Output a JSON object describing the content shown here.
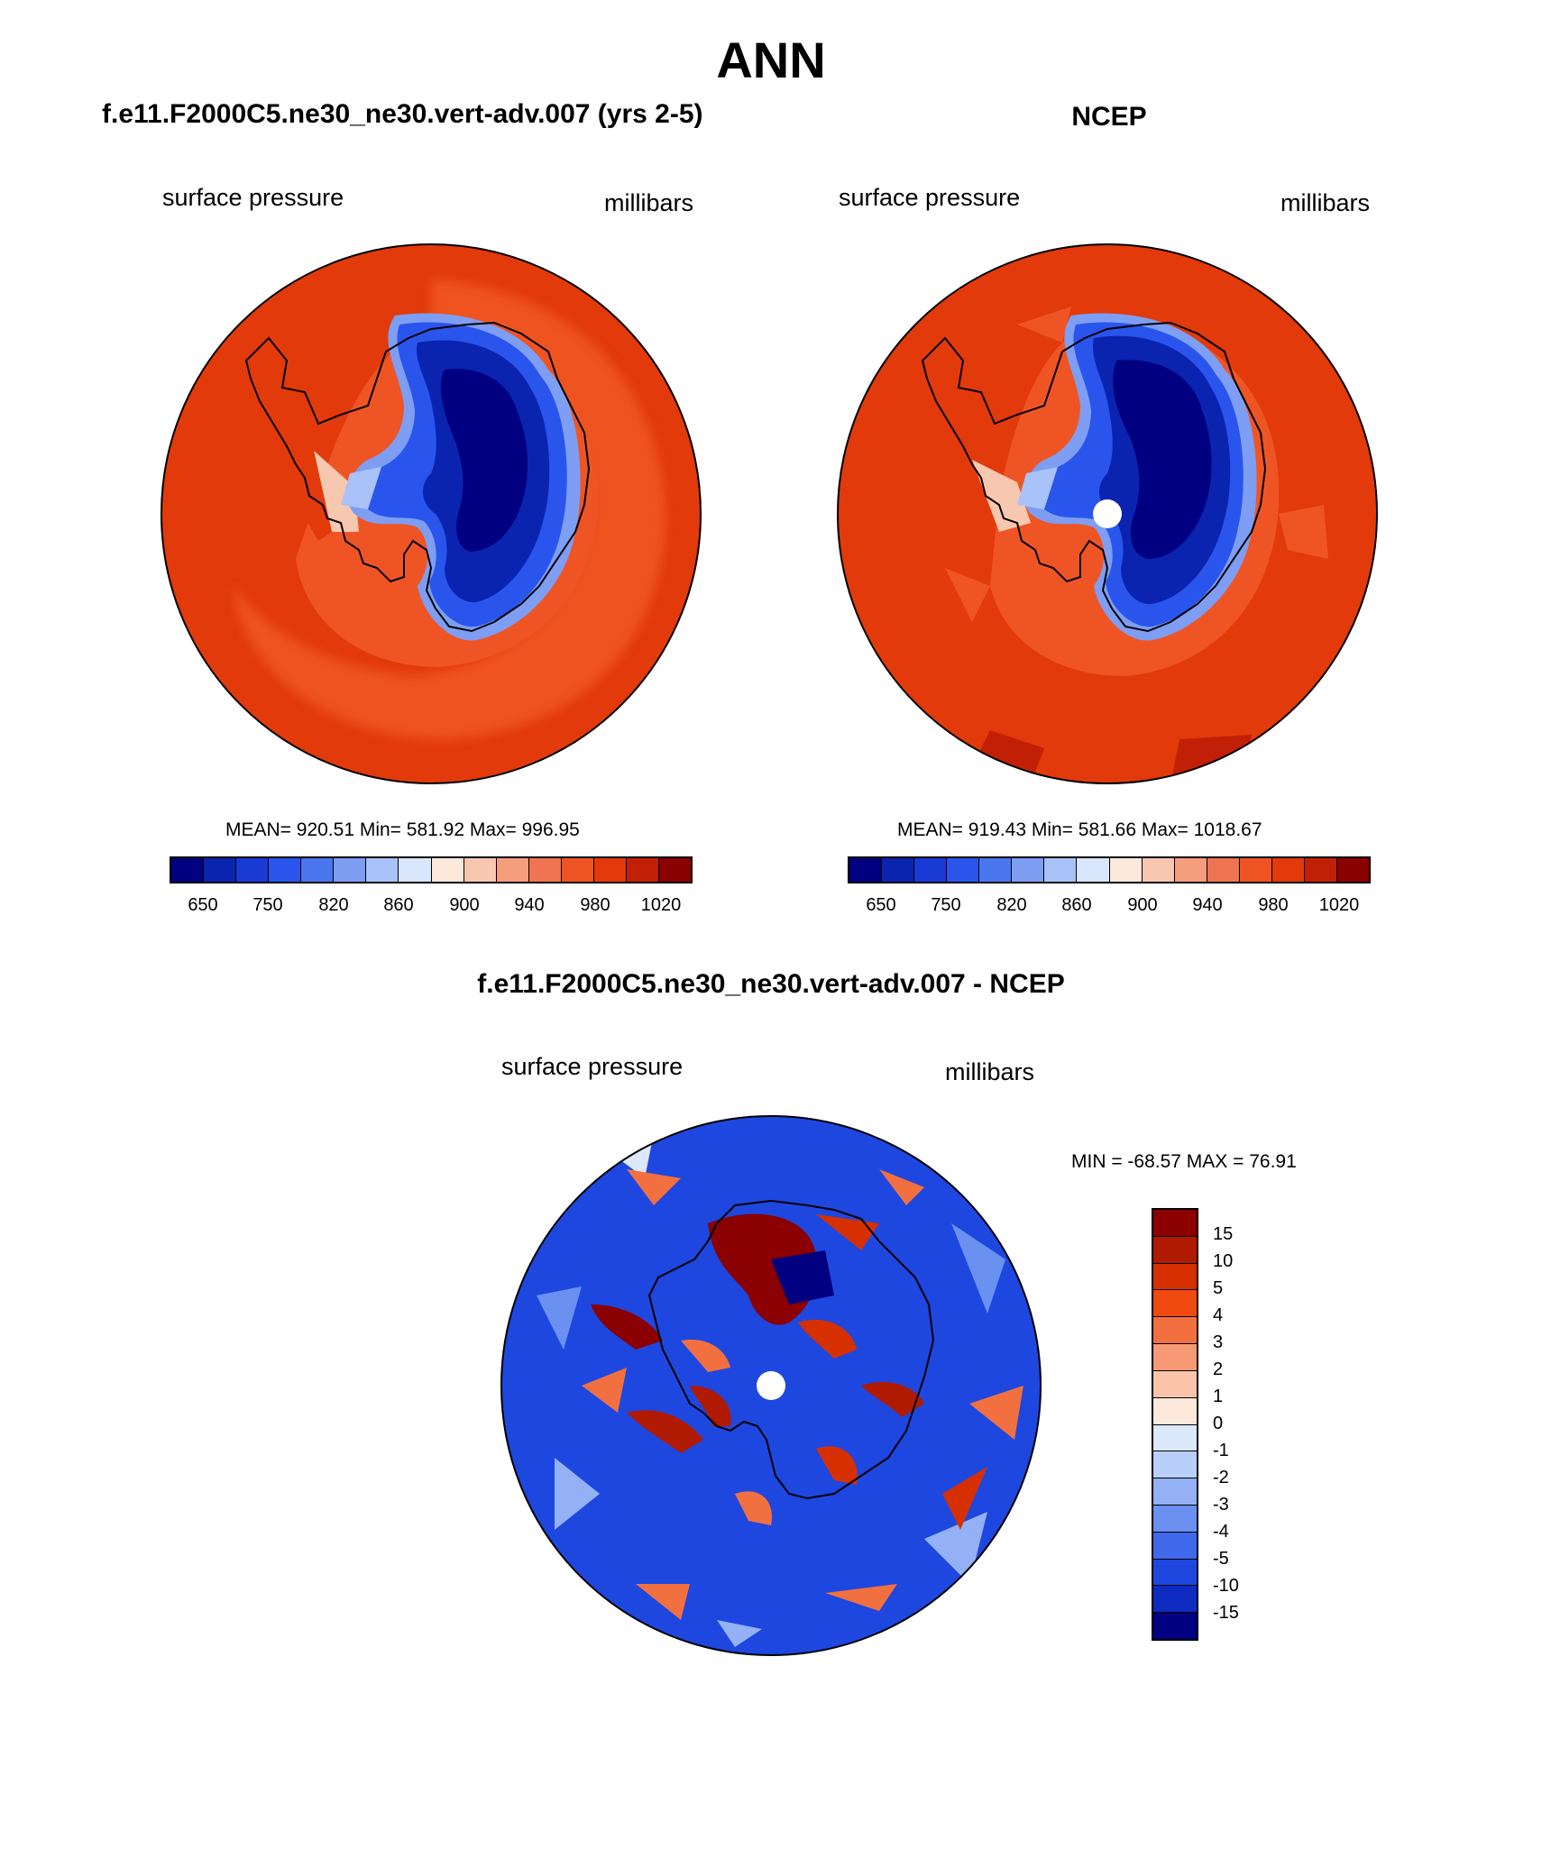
{
  "title": "ANN",
  "colors": {
    "abs_scale": [
      "#000080",
      "#0a24b0",
      "#1a3ad6",
      "#2a55ec",
      "#4a76f0",
      "#7d9ef3",
      "#a9c2f7",
      "#d9e6fb",
      "#fde9dc",
      "#f8c7b0",
      "#f49e7e",
      "#f07452",
      "#ef5524",
      "#e23a0a",
      "#c22006",
      "#8b0000"
    ],
    "diff_scale": [
      "#8b0000",
      "#b01a00",
      "#d63000",
      "#ef4a10",
      "#f2703f",
      "#f59a74",
      "#f9c4a9",
      "#fde9dc",
      "#dce8fb",
      "#b9cef8",
      "#93b1f4",
      "#6a90f0",
      "#3f68ea",
      "#1e47e0",
      "#0d2bc0",
      "#000080"
    ]
  },
  "panels": [
    {
      "title": "f.e11.F2000C5.ne30_ne30.vert-adv.007 (yrs 2-5)",
      "variable": "surface pressure",
      "units": "millibars",
      "stats": "MEAN= 920.51  Min= 581.92  Max= 996.95",
      "colorbar_labels": [
        "650",
        "750",
        "820",
        "860",
        "900",
        "940",
        "980",
        "1020"
      ]
    },
    {
      "title": "NCEP",
      "variable": "surface pressure",
      "units": "millibars",
      "stats": "MEAN= 919.43  Min= 581.66  Max= 1018.67",
      "colorbar_labels": [
        "650",
        "750",
        "820",
        "860",
        "900",
        "940",
        "980",
        "1020"
      ]
    },
    {
      "title": "f.e11.F2000C5.ne30_ne30.vert-adv.007 - NCEP",
      "variable": "surface pressure",
      "units": "millibars",
      "stats": "MIN = -68.57 MAX =  76.91",
      "colorbar_labels": [
        "15",
        "10",
        "5",
        "4",
        "3",
        "2",
        "1",
        "0",
        "-1",
        "-2",
        "-3",
        "-4",
        "-5",
        "-10",
        "-15"
      ]
    }
  ]
}
